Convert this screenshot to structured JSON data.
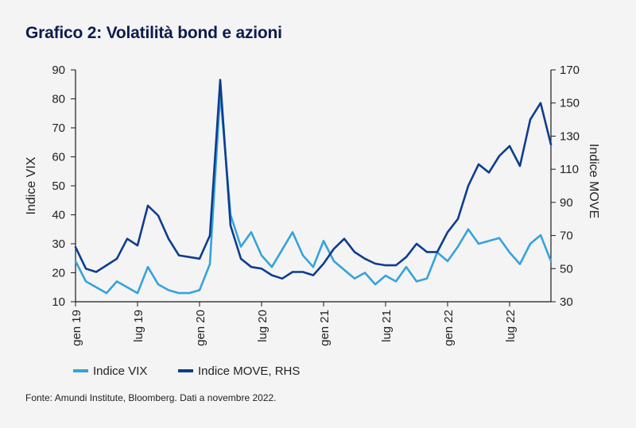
{
  "title": "Grafico 2: Volatilità bond e azioni",
  "source": "Fonte: Amundi Institute, Bloomberg. Dati a novembre 2022.",
  "chart_data": {
    "type": "line",
    "title": "Grafico 2: Volatilità bond e azioni",
    "x_ticks": [
      "gen 19",
      "lug 19",
      "gen 20",
      "lug 20",
      "gen 21",
      "lug 21",
      "gen 22",
      "lug 22"
    ],
    "y_left": {
      "label": "Indice VIX",
      "ticks": [
        10,
        20,
        30,
        40,
        50,
        60,
        70,
        80,
        90
      ],
      "ylim": [
        10,
        90
      ]
    },
    "y_right": {
      "label": "Indice MOVE",
      "ticks": [
        30,
        50,
        70,
        90,
        110,
        130,
        150,
        170
      ],
      "ylim": [
        30,
        170
      ]
    },
    "x_range": [
      "2019-01",
      "2022-11"
    ],
    "legend": {
      "position": "bottom-left"
    },
    "series": [
      {
        "name": "Indice VIX",
        "axis": "left",
        "color": "#36a3da",
        "x": [
          "2019-01",
          "2019-02",
          "2019-03",
          "2019-04",
          "2019-05",
          "2019-06",
          "2019-07",
          "2019-08",
          "2019-09",
          "2019-10",
          "2019-11",
          "2019-12",
          "2020-01",
          "2020-02",
          "2020-03",
          "2020-04",
          "2020-05",
          "2020-06",
          "2020-07",
          "2020-08",
          "2020-09",
          "2020-10",
          "2020-11",
          "2020-12",
          "2021-01",
          "2021-02",
          "2021-03",
          "2021-04",
          "2021-05",
          "2021-06",
          "2021-07",
          "2021-08",
          "2021-09",
          "2021-10",
          "2021-11",
          "2021-12",
          "2022-01",
          "2022-02",
          "2022-03",
          "2022-04",
          "2022-05",
          "2022-06",
          "2022-07",
          "2022-08",
          "2022-09",
          "2022-10",
          "2022-11"
        ],
        "values": [
          24,
          17,
          15,
          13,
          17,
          15,
          13,
          22,
          16,
          14,
          13,
          13,
          14,
          23,
          82,
          40,
          29,
          34,
          26,
          22,
          28,
          34,
          26,
          22,
          31,
          24,
          21,
          18,
          20,
          16,
          19,
          17,
          22,
          17,
          18,
          27,
          24,
          29,
          35,
          30,
          31,
          32,
          27,
          23,
          30,
          33,
          24
        ]
      },
      {
        "name": "Indice MOVE, RHS",
        "axis": "right",
        "color": "#0d3d8f",
        "x": [
          "2019-01",
          "2019-02",
          "2019-03",
          "2019-04",
          "2019-05",
          "2019-06",
          "2019-07",
          "2019-08",
          "2019-09",
          "2019-10",
          "2019-11",
          "2019-12",
          "2020-01",
          "2020-02",
          "2020-03",
          "2020-04",
          "2020-05",
          "2020-06",
          "2020-07",
          "2020-08",
          "2020-09",
          "2020-10",
          "2020-11",
          "2020-12",
          "2021-01",
          "2021-02",
          "2021-03",
          "2021-04",
          "2021-05",
          "2021-06",
          "2021-07",
          "2021-08",
          "2021-09",
          "2021-10",
          "2021-11",
          "2021-12",
          "2022-01",
          "2022-02",
          "2022-03",
          "2022-04",
          "2022-05",
          "2022-06",
          "2022-07",
          "2022-08",
          "2022-09",
          "2022-10",
          "2022-11"
        ],
        "values": [
          63,
          50,
          48,
          52,
          56,
          68,
          64,
          88,
          82,
          68,
          58,
          57,
          56,
          70,
          164,
          76,
          56,
          51,
          50,
          46,
          44,
          48,
          48,
          46,
          53,
          62,
          68,
          60,
          56,
          53,
          52,
          52,
          57,
          65,
          60,
          60,
          72,
          80,
          100,
          113,
          108,
          118,
          124,
          112,
          140,
          150,
          125
        ]
      }
    ]
  }
}
